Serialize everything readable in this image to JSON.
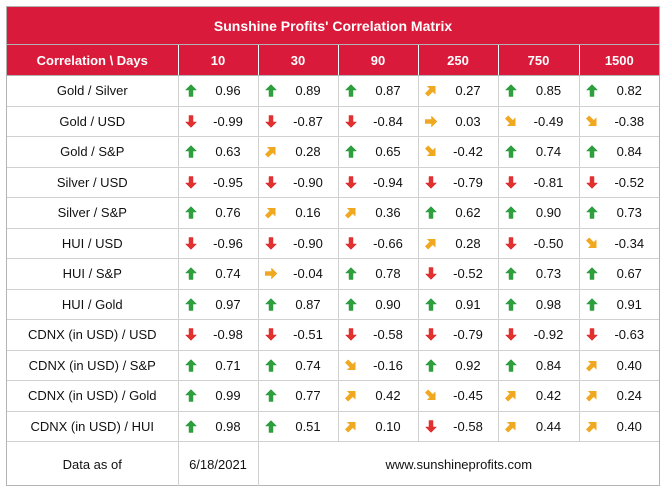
{
  "title": "Sunshine Profits' Correlation Matrix",
  "header": {
    "label": "Correlation \\ Days",
    "days": [
      "10",
      "30",
      "90",
      "250",
      "750",
      "1500"
    ]
  },
  "colors": {
    "header_bg": "#d91a3a",
    "up": "#2e9e3e",
    "down": "#e03030",
    "side": "#f0a820"
  },
  "rows": [
    {
      "label": "Gold / Silver",
      "cells": [
        {
          "v": "0.96",
          "a": "up"
        },
        {
          "v": "0.89",
          "a": "up"
        },
        {
          "v": "0.87",
          "a": "up"
        },
        {
          "v": "0.27",
          "a": "upright"
        },
        {
          "v": "0.85",
          "a": "up"
        },
        {
          "v": "0.82",
          "a": "up"
        }
      ]
    },
    {
      "label": "Gold / USD",
      "cells": [
        {
          "v": "-0.99",
          "a": "down"
        },
        {
          "v": "-0.87",
          "a": "down"
        },
        {
          "v": "-0.84",
          "a": "down"
        },
        {
          "v": "0.03",
          "a": "right"
        },
        {
          "v": "-0.49",
          "a": "downright"
        },
        {
          "v": "-0.38",
          "a": "downright"
        }
      ]
    },
    {
      "label": "Gold / S&P",
      "cells": [
        {
          "v": "0.63",
          "a": "up"
        },
        {
          "v": "0.28",
          "a": "upright"
        },
        {
          "v": "0.65",
          "a": "up"
        },
        {
          "v": "-0.42",
          "a": "downright"
        },
        {
          "v": "0.74",
          "a": "up"
        },
        {
          "v": "0.84",
          "a": "up"
        }
      ]
    },
    {
      "label": "Silver / USD",
      "cells": [
        {
          "v": "-0.95",
          "a": "down"
        },
        {
          "v": "-0.90",
          "a": "down"
        },
        {
          "v": "-0.94",
          "a": "down"
        },
        {
          "v": "-0.79",
          "a": "down"
        },
        {
          "v": "-0.81",
          "a": "down"
        },
        {
          "v": "-0.52",
          "a": "down"
        }
      ]
    },
    {
      "label": "Silver / S&P",
      "cells": [
        {
          "v": "0.76",
          "a": "up"
        },
        {
          "v": "0.16",
          "a": "upright"
        },
        {
          "v": "0.36",
          "a": "upright"
        },
        {
          "v": "0.62",
          "a": "up"
        },
        {
          "v": "0.90",
          "a": "up"
        },
        {
          "v": "0.73",
          "a": "up"
        }
      ]
    },
    {
      "label": "HUI / USD",
      "cells": [
        {
          "v": "-0.96",
          "a": "down"
        },
        {
          "v": "-0.90",
          "a": "down"
        },
        {
          "v": "-0.66",
          "a": "down"
        },
        {
          "v": "0.28",
          "a": "upright"
        },
        {
          "v": "-0.50",
          "a": "down"
        },
        {
          "v": "-0.34",
          "a": "downright"
        }
      ]
    },
    {
      "label": "HUI / S&P",
      "cells": [
        {
          "v": "0.74",
          "a": "up"
        },
        {
          "v": "-0.04",
          "a": "right"
        },
        {
          "v": "0.78",
          "a": "up"
        },
        {
          "v": "-0.52",
          "a": "down"
        },
        {
          "v": "0.73",
          "a": "up"
        },
        {
          "v": "0.67",
          "a": "up"
        }
      ]
    },
    {
      "label": "HUI / Gold",
      "cells": [
        {
          "v": "0.97",
          "a": "up"
        },
        {
          "v": "0.87",
          "a": "up"
        },
        {
          "v": "0.90",
          "a": "up"
        },
        {
          "v": "0.91",
          "a": "up"
        },
        {
          "v": "0.98",
          "a": "up"
        },
        {
          "v": "0.91",
          "a": "up"
        }
      ]
    },
    {
      "label": "CDNX (in USD) / USD",
      "cells": [
        {
          "v": "-0.98",
          "a": "down"
        },
        {
          "v": "-0.51",
          "a": "down"
        },
        {
          "v": "-0.58",
          "a": "down"
        },
        {
          "v": "-0.79",
          "a": "down"
        },
        {
          "v": "-0.92",
          "a": "down"
        },
        {
          "v": "-0.63",
          "a": "down"
        }
      ]
    },
    {
      "label": "CDNX (in USD) / S&P",
      "cells": [
        {
          "v": "0.71",
          "a": "up"
        },
        {
          "v": "0.74",
          "a": "up"
        },
        {
          "v": "-0.16",
          "a": "downright"
        },
        {
          "v": "0.92",
          "a": "up"
        },
        {
          "v": "0.84",
          "a": "up"
        },
        {
          "v": "0.40",
          "a": "upright"
        }
      ]
    },
    {
      "label": "CDNX (in USD) / Gold",
      "cells": [
        {
          "v": "0.99",
          "a": "up"
        },
        {
          "v": "0.77",
          "a": "up"
        },
        {
          "v": "0.42",
          "a": "upright"
        },
        {
          "v": "-0.45",
          "a": "downright"
        },
        {
          "v": "0.42",
          "a": "upright"
        },
        {
          "v": "0.24",
          "a": "upright"
        }
      ]
    },
    {
      "label": "CDNX (in USD) / HUI",
      "cells": [
        {
          "v": "0.98",
          "a": "up"
        },
        {
          "v": "0.51",
          "a": "up"
        },
        {
          "v": "0.10",
          "a": "upright"
        },
        {
          "v": "-0.58",
          "a": "down"
        },
        {
          "v": "0.44",
          "a": "upright"
        },
        {
          "v": "0.40",
          "a": "upright"
        }
      ]
    }
  ],
  "footer": {
    "label": "Data as of",
    "date": "6/18/2021",
    "site": "www.sunshineprofits.com"
  }
}
